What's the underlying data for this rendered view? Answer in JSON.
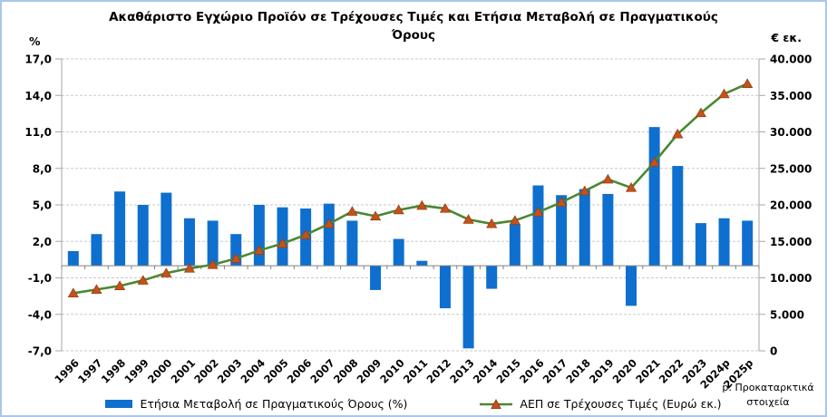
{
  "title": {
    "line1": "Ακαθάριστο Εγχώριο Προϊόν σε Τρέχουσες Τιμές και Ετήσια Μεταβολή σε Πραγματικούς",
    "line2": "Όρους"
  },
  "axes": {
    "left_unit": "%",
    "right_unit": "€ εκ.",
    "left_ticks": [
      "17,0",
      "14,0",
      "11,0",
      "8,0",
      "5,0",
      "2,0",
      "-1,0",
      "-4,0",
      "-7,0"
    ],
    "right_ticks": [
      "40.000",
      "35.000",
      "30.000",
      "25.000",
      "20.000",
      "15.000",
      "10.000",
      "5.000",
      "0"
    ]
  },
  "legend": [
    {
      "label": "Ετήσια Μεταβολή σε Πραγματικούς Όρους (%)"
    },
    {
      "label": "ΑΕΠ σε Τρέχουσες Τιμές (Ευρώ εκ.)"
    }
  ],
  "footnote": {
    "line1": "p: Προκαταρκτικά",
    "line2": "στοιχεία"
  },
  "colors": {
    "bar": "#0F6FCE",
    "line": "#4A8732",
    "marker": "#C5521A",
    "marker_edge": "#9C3D10",
    "grid": "#C9C9C9",
    "axis": "#A6A6A6",
    "zero_axis": "#808080",
    "frame_border": "#A9C7E8"
  },
  "chart_data": {
    "type": "bar",
    "subtype": "combo-bar-line-dual-axis",
    "title": "Ακαθάριστο Εγχώριο Προϊόν σε Τρέχουσες Τιμές και Ετήσια Μεταβολή σε Πραγματικούς Όρους",
    "categories": [
      "1996",
      "1997",
      "1998",
      "1999",
      "2000",
      "2001",
      "2002",
      "2003",
      "2004",
      "2005",
      "2006",
      "2007",
      "2008",
      "2009",
      "2010",
      "2011",
      "2012",
      "2013",
      "2014",
      "2015",
      "2016",
      "2017",
      "2018",
      "2019",
      "2020",
      "2021",
      "2022",
      "2023",
      "2024p",
      "2025p"
    ],
    "series": [
      {
        "name": "Ετήσια Μεταβολή σε Πραγματικούς Όρους (%)",
        "type": "bar",
        "axis": "left",
        "values": [
          1.2,
          2.6,
          6.1,
          5.0,
          6.0,
          3.9,
          3.7,
          2.6,
          5.0,
          4.8,
          4.7,
          5.1,
          3.7,
          -2.0,
          2.2,
          0.4,
          -3.5,
          -6.8,
          -1.9,
          3.4,
          6.6,
          5.8,
          6.3,
          5.9,
          -3.3,
          11.4,
          8.2,
          3.5,
          3.9,
          3.7
        ]
      },
      {
        "name": "ΑΕΠ σε Τρέχουσες Τιμές (Ευρώ εκ.)",
        "type": "line",
        "axis": "right",
        "values": [
          7900,
          8400,
          8900,
          9650,
          10650,
          11300,
          11800,
          12650,
          13750,
          14700,
          15900,
          17400,
          19100,
          18450,
          19300,
          19900,
          19500,
          18000,
          17400,
          17850,
          19000,
          20350,
          21900,
          23500,
          22350,
          25850,
          29700,
          32600,
          35200,
          36600
        ]
      }
    ],
    "left_axis": {
      "label": "%",
      "min": -7,
      "max": 17,
      "tick_step": 3
    },
    "right_axis": {
      "label": "€ εκ.",
      "min": 0,
      "max": 40000,
      "tick_step": 5000
    },
    "grid": "horizontal dashed",
    "legend_position": "bottom",
    "note": "p: Προκαταρκτικά στοιχεία"
  }
}
